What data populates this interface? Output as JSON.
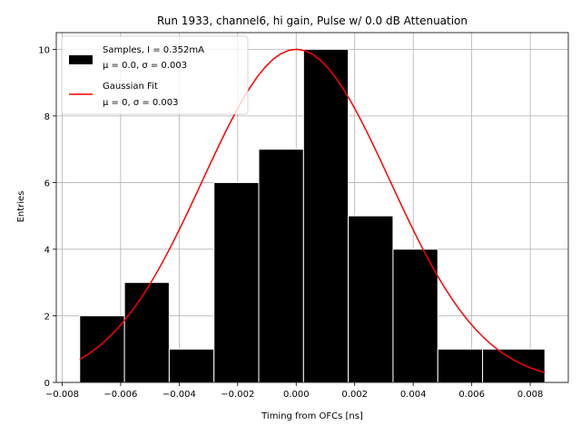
{
  "chart_data": {
    "type": "bar",
    "title": "Run 1933, channel6, hi gain, Pulse w/ 0.0 dB Attenuation",
    "xlabel": "Timing from OFCs [ns]",
    "ylabel": "Entries",
    "xlim": [
      -0.0082,
      0.0093
    ],
    "ylim": [
      0,
      10.5
    ],
    "xticks": [
      -0.008,
      -0.006,
      -0.004,
      -0.002,
      0.0,
      0.002,
      0.004,
      0.006,
      0.008
    ],
    "xtick_labels": [
      "−0.008",
      "−0.006",
      "−0.004",
      "−0.002",
      "0.000",
      "0.002",
      "0.004",
      "0.006",
      "0.008"
    ],
    "yticks": [
      0,
      2,
      4,
      6,
      8,
      10
    ],
    "ytick_labels": [
      "0",
      "2",
      "4",
      "6",
      "8",
      "10"
    ],
    "grid": true,
    "legend_position": "top-left",
    "histogram": {
      "name": "Samples, I = 0.352mA",
      "name_line2": "μ = 0.0, σ = 0.003",
      "color": "#000000",
      "edge_color": "#ffffff",
      "bin_edges": [
        -0.0074,
        -0.00587,
        -0.00434,
        -0.00281,
        -0.00128,
        0.00025,
        0.00178,
        0.00331,
        0.00484,
        0.00637,
        0.0085
      ],
      "counts": [
        2,
        3,
        1,
        6,
        7,
        10,
        5,
        4,
        1,
        1
      ]
    },
    "fit": {
      "name": "Gaussian Fit",
      "name_line2": "μ = 0, σ = 0.003",
      "color": "#ff0000",
      "mu": 0.0,
      "sigma": 0.0032,
      "amplitude": 10.0,
      "x_range": [
        -0.0074,
        0.0085
      ]
    }
  }
}
